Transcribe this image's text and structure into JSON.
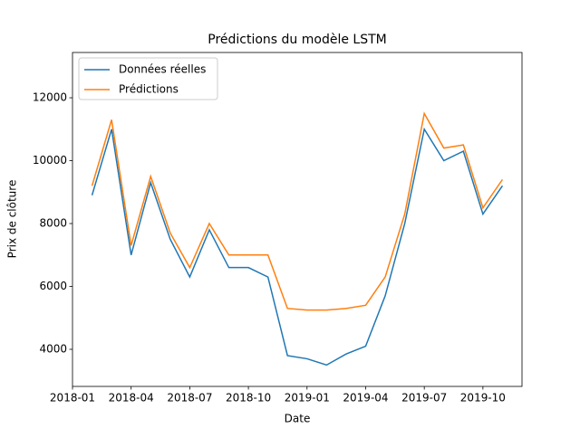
{
  "chart_data": {
    "type": "line",
    "title": "Prédictions du modèle LSTM",
    "x_label": "Date",
    "y_label": "Prix de clôture",
    "x": [
      "2018-02",
      "2018-03",
      "2018-04",
      "2018-05",
      "2018-06",
      "2018-07",
      "2018-08",
      "2018-09",
      "2018-10",
      "2018-11",
      "2018-12",
      "2019-01",
      "2019-02",
      "2019-03",
      "2019-04",
      "2019-05",
      "2019-06",
      "2019-07",
      "2019-08",
      "2019-09",
      "2019-10",
      "2019-11"
    ],
    "series": [
      {
        "name": "Données réelles",
        "color": "#1f77b4",
        "values": [
          8900,
          11000,
          7000,
          9300,
          7500,
          6300,
          7800,
          6600,
          6600,
          6300,
          3800,
          3700,
          3500,
          3850,
          4100,
          5700,
          8000,
          11000,
          10000,
          10300,
          8300,
          9200
        ]
      },
      {
        "name": "Prédictions",
        "color": "#ff7f0e",
        "values": [
          9200,
          11300,
          7300,
          9500,
          7700,
          6600,
          8000,
          7000,
          7000,
          7000,
          5300,
          5250,
          5250,
          5300,
          5400,
          6300,
          8300,
          11500,
          10400,
          10500,
          8500,
          9400
        ]
      }
    ],
    "xlim": [
      "2018-01",
      "2019-12"
    ],
    "xticks": [
      "2018-01",
      "2018-04",
      "2018-07",
      "2018-10",
      "2019-01",
      "2019-04",
      "2019-07",
      "2019-10"
    ],
    "ylim": [
      2820,
      13440
    ],
    "yticks": [
      4000,
      6000,
      8000,
      10000,
      12000
    ],
    "legend": "upper left"
  }
}
